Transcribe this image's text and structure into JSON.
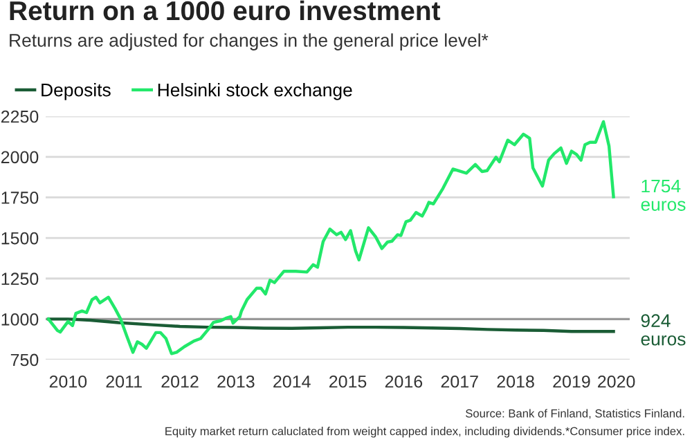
{
  "chart_data": {
    "type": "line",
    "title": "Return on a 1000 euro investment",
    "subtitle": "Returns are adjusted for changes in the general price level*",
    "xlim": [
      2010.1,
      2020.54
    ],
    "ylim": [
      750,
      2250
    ],
    "yticks": [
      750,
      1000,
      1250,
      1500,
      1750,
      2000,
      2250
    ],
    "xticks": [
      {
        "value": 2010.5,
        "label": "2010"
      },
      {
        "value": 2011.5,
        "label": "2011"
      },
      {
        "value": 2012.5,
        "label": "2012"
      },
      {
        "value": 2013.5,
        "label": "2013"
      },
      {
        "value": 2014.5,
        "label": "2014"
      },
      {
        "value": 2015.5,
        "label": "2015"
      },
      {
        "value": 2016.5,
        "label": "2016"
      },
      {
        "value": 2017.5,
        "label": "2017"
      },
      {
        "value": 2018.5,
        "label": "2018"
      },
      {
        "value": 2019.5,
        "label": "2019"
      },
      {
        "value": 2020.3,
        "label": "2020"
      }
    ],
    "grid": "y",
    "legend": "top left",
    "line_style": "solid",
    "marker": "none",
    "ref_lines": [
      {
        "axis": "y",
        "value": 1000,
        "color": "#999999"
      }
    ],
    "series": [
      {
        "name": "Deposits",
        "color": "#1a5c35",
        "x": [
          2010.15,
          2010.5,
          2010.9,
          2011.4,
          2012.0,
          2012.5,
          2013.0,
          2013.5,
          2014.0,
          2014.5,
          2015.0,
          2015.5,
          2016.0,
          2016.5,
          2017.0,
          2017.5,
          2018.0,
          2018.5,
          2019.0,
          2019.5,
          2020.0,
          2020.25
        ],
        "values": [
          1000,
          1000,
          993,
          978,
          965,
          955,
          950,
          948,
          944,
          943,
          946,
          950,
          950,
          948,
          945,
          942,
          936,
          932,
          930,
          924,
          924,
          924
        ]
      },
      {
        "name": "Helsinki stock exchange",
        "color": "#22e86a",
        "x": [
          2010.15,
          2010.31,
          2010.36,
          2010.5,
          2010.58,
          2010.64,
          2010.75,
          2010.83,
          2010.93,
          2011.0,
          2011.07,
          2011.22,
          2011.34,
          2011.44,
          2011.55,
          2011.66,
          2011.74,
          2011.82,
          2011.9,
          2012.07,
          2012.15,
          2012.25,
          2012.35,
          2012.44,
          2012.58,
          2012.75,
          2012.87,
          2013.01,
          2013.1,
          2013.23,
          2013.32,
          2013.41,
          2013.45,
          2013.57,
          2013.6,
          2013.7,
          2013.87,
          2013.95,
          2014.03,
          2014.11,
          2014.19,
          2014.36,
          2014.57,
          2014.77,
          2014.88,
          2014.96,
          2015.06,
          2015.18,
          2015.3,
          2015.38,
          2015.46,
          2015.55,
          2015.64,
          2015.7,
          2015.87,
          2016.0,
          2016.11,
          2016.21,
          2016.29,
          2016.39,
          2016.45,
          2016.54,
          2016.62,
          2016.72,
          2016.83,
          2016.9,
          2016.95,
          2017.03,
          2017.2,
          2017.38,
          2017.62,
          2017.78,
          2017.9,
          2017.99,
          2018.15,
          2018.21,
          2018.36,
          2018.48,
          2018.64,
          2018.75,
          2018.81,
          2018.98,
          2019.09,
          2019.19,
          2019.31,
          2019.41,
          2019.5,
          2019.59,
          2019.67,
          2019.74,
          2019.83,
          2019.93,
          2020.07,
          2020.17,
          2020.25
        ],
        "values": [
          1000,
          930,
          920,
          985,
          960,
          1035,
          1050,
          1040,
          1120,
          1135,
          1100,
          1135,
          1065,
          1000,
          895,
          795,
          860,
          845,
          820,
          917,
          917,
          880,
          787,
          795,
          830,
          865,
          880,
          938,
          980,
          990,
          1005,
          1015,
          975,
          1015,
          1050,
          1120,
          1190,
          1190,
          1155,
          1240,
          1225,
          1295,
          1295,
          1290,
          1335,
          1320,
          1478,
          1555,
          1520,
          1535,
          1490,
          1545,
          1420,
          1365,
          1563,
          1506,
          1435,
          1475,
          1480,
          1520,
          1515,
          1600,
          1610,
          1657,
          1635,
          1680,
          1720,
          1710,
          1805,
          1925,
          1900,
          1953,
          1910,
          1915,
          1998,
          1970,
          2103,
          2075,
          2140,
          2115,
          1932,
          1820,
          1980,
          2020,
          2055,
          1960,
          2035,
          2015,
          1980,
          2075,
          2090,
          2090,
          2217,
          2066,
          1754
        ]
      }
    ],
    "annotations": [
      {
        "text": "1754\neuros",
        "x": 2020.25,
        "y": 1754
      },
      {
        "text": "924\neuros",
        "x": 2020.25,
        "y": 924
      },
      "Source: Bank of Finland, Statistics Finland.",
      "Equity market return caluclated from weight capped index, including dividends.*Consumer price index."
    ]
  }
}
